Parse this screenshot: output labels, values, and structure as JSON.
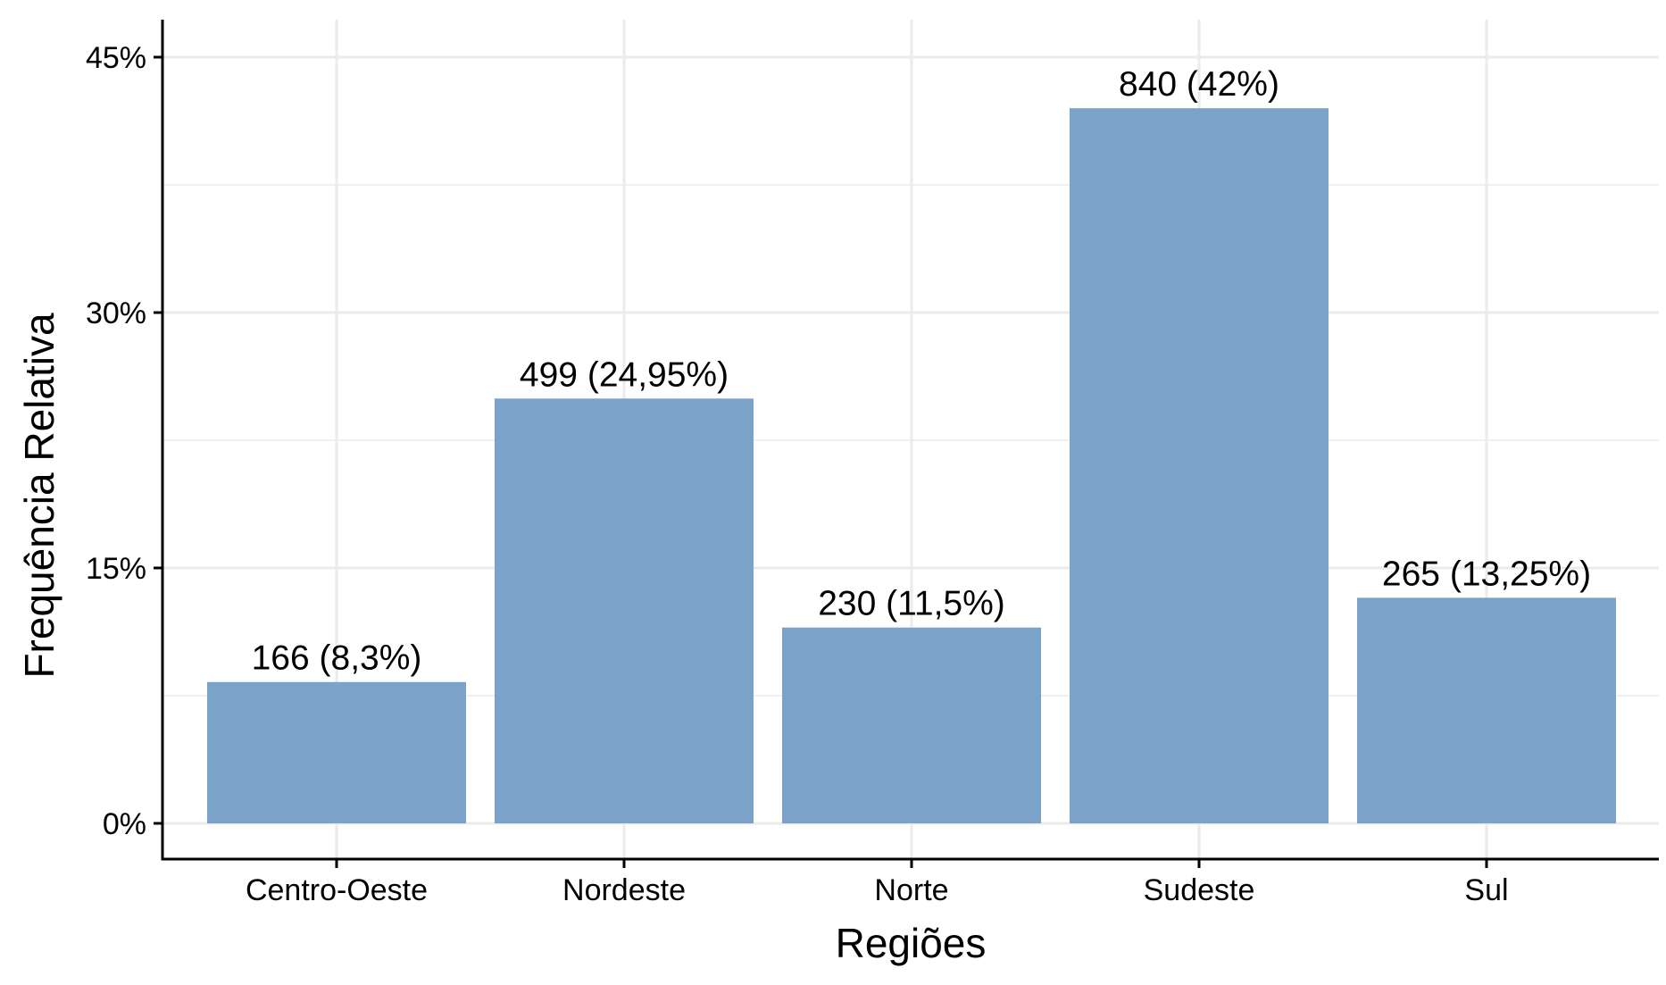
{
  "chart_data": {
    "type": "bar",
    "title": "",
    "xlabel": "Regiões",
    "ylabel": "Frequência Relativa",
    "categories": [
      "Centro-Oeste",
      "Nordeste",
      "Norte",
      "Sudeste",
      "Sul"
    ],
    "counts": [
      166,
      499,
      230,
      840,
      265
    ],
    "values": [
      8.3,
      24.95,
      11.5,
      42,
      13.25
    ],
    "value_unit": "%",
    "data_labels": [
      "166 (8,3%)",
      "499 (24,95%)",
      "230 (11,5%)",
      "840 (42%)",
      "265 (13,25%)"
    ],
    "ylim": [
      -2.1,
      47.25
    ],
    "yticks": [
      0,
      15,
      30,
      45
    ],
    "ytick_labels": [
      "0%",
      "15%",
      "30%",
      "45%"
    ],
    "grid": true,
    "legend": "none",
    "bar_color": "#7BA3CA",
    "grid_color": "#EBEBEB",
    "axis_color": "#000000"
  }
}
